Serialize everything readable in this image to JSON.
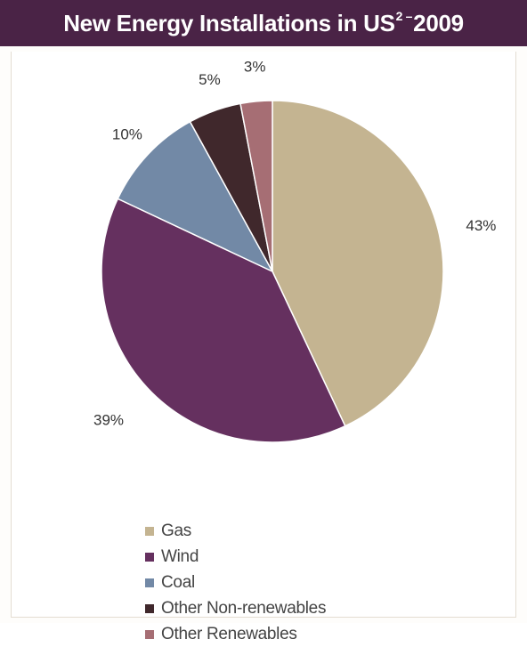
{
  "header": {
    "title_main": "New Energy Installations in US",
    "title_sup": "2 –",
    "title_year": "2009"
  },
  "chart_data": {
    "type": "pie",
    "title": "New Energy Installations in US2 – 2009",
    "categories": [
      "Gas",
      "Wind",
      "Coal",
      "Other Non-renewables",
      "Other Renewables"
    ],
    "values": [
      43,
      39,
      10,
      5,
      3
    ],
    "labels": [
      "43%",
      "39%",
      "10%",
      "5%",
      "3%"
    ],
    "colors": [
      "#c4b491",
      "#65305f",
      "#7289a6",
      "#40282c",
      "#a66e74"
    ],
    "legend_position": "bottom-left"
  },
  "colors": {
    "title_bar": "#4a2346",
    "title_text": "#ffffff"
  }
}
